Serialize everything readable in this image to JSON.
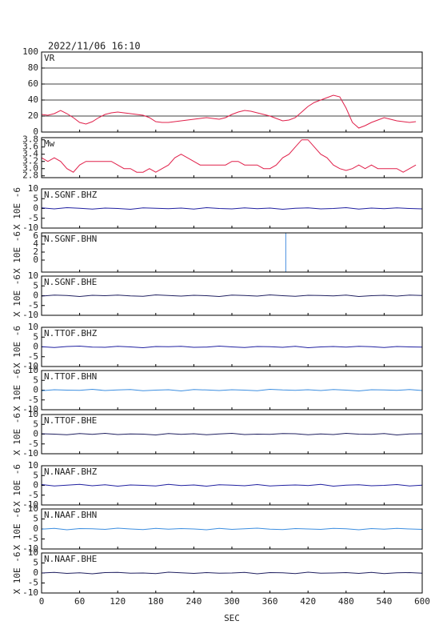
{
  "chart_data": [
    {
      "type": "line",
      "title": "2022/11/06 16:10",
      "label": "VR",
      "grid": true,
      "xlim": [
        0,
        600
      ],
      "xticks": [
        0,
        60,
        120,
        180,
        240,
        300,
        360,
        420,
        480,
        540,
        600
      ],
      "ylim": [
        0,
        100
      ],
      "yticks": [
        0,
        20,
        40,
        60,
        80,
        100
      ],
      "series": [
        {
          "color": "#e0204a",
          "x": [
            0,
            10,
            20,
            30,
            40,
            50,
            60,
            70,
            80,
            90,
            100,
            110,
            120,
            130,
            140,
            150,
            160,
            170,
            180,
            190,
            200,
            210,
            220,
            230,
            240,
            250,
            260,
            270,
            280,
            290,
            300,
            310,
            320,
            330,
            340,
            350,
            360,
            370,
            380,
            390,
            400,
            410,
            420,
            430,
            440,
            450,
            460,
            470,
            480,
            490,
            500,
            510,
            520,
            530,
            540,
            550,
            560,
            570,
            580,
            590
          ],
          "values": [
            22,
            21,
            23,
            27,
            23,
            18,
            12,
            10,
            13,
            18,
            22,
            24,
            25,
            24,
            23,
            22,
            21,
            18,
            13,
            12,
            12,
            13,
            14,
            15,
            16,
            17,
            18,
            17,
            16,
            18,
            22,
            25,
            27,
            26,
            24,
            22,
            20,
            17,
            14,
            15,
            18,
            25,
            32,
            37,
            40,
            43,
            46,
            44,
            30,
            12,
            5,
            8,
            12,
            15,
            18,
            16,
            14,
            13,
            12,
            13
          ]
        }
      ]
    },
    {
      "type": "line",
      "label": "Mw",
      "xlim": [
        0,
        600
      ],
      "xticks": [
        0,
        60,
        120,
        180,
        240,
        300,
        360,
        420,
        480,
        540,
        600
      ],
      "ylim": [
        2.75,
        3.86
      ],
      "yticks": [
        {
          "value": 2.8,
          "label": "2.8"
        },
        {
          "value": 3.0,
          "label": "3.0"
        },
        3.2,
        3.4,
        3.6,
        3.8
      ],
      "series": [
        {
          "color": "#e0204a",
          "x": [
            0,
            10,
            20,
            30,
            40,
            50,
            60,
            70,
            80,
            90,
            100,
            110,
            120,
            130,
            140,
            150,
            160,
            170,
            180,
            190,
            200,
            210,
            220,
            230,
            240,
            250,
            260,
            270,
            280,
            290,
            300,
            310,
            320,
            330,
            340,
            350,
            360,
            370,
            380,
            390,
            400,
            410,
            420,
            430,
            440,
            450,
            460,
            470,
            480,
            490,
            500,
            510,
            520,
            530,
            540,
            550,
            560,
            570,
            580,
            590
          ],
          "values": [
            3.3,
            3.2,
            3.3,
            3.2,
            3.0,
            2.9,
            3.1,
            3.2,
            3.2,
            3.2,
            3.2,
            3.2,
            3.1,
            3.0,
            3.0,
            2.9,
            2.9,
            3.0,
            2.9,
            3.0,
            3.1,
            3.3,
            3.4,
            3.3,
            3.2,
            3.1,
            3.1,
            3.1,
            3.1,
            3.1,
            3.2,
            3.2,
            3.1,
            3.1,
            3.1,
            3.0,
            3.0,
            3.1,
            3.3,
            3.4,
            3.6,
            3.8,
            3.8,
            3.6,
            3.4,
            3.3,
            3.1,
            3.0,
            2.95,
            3.0,
            3.1,
            3.0,
            3.1,
            3.0,
            3.0,
            3.0,
            3.0,
            2.9,
            3.0,
            3.1
          ]
        }
      ]
    },
    {
      "type": "line",
      "label": "N.SGNF.BHZ",
      "ylabel": "X 10E -6",
      "xlim": [
        0,
        600
      ],
      "xticks": [
        0,
        60,
        120,
        180,
        240,
        300,
        360,
        420,
        480,
        540,
        600
      ],
      "ylim": [
        -10,
        10
      ],
      "yticks": [
        -10,
        -5,
        0,
        5,
        10
      ],
      "series": [
        {
          "color": "#2020a0",
          "x": [
            0,
            20,
            40,
            60,
            80,
            100,
            120,
            140,
            160,
            180,
            200,
            220,
            240,
            260,
            280,
            300,
            320,
            340,
            360,
            380,
            400,
            420,
            440,
            460,
            480,
            500,
            520,
            540,
            560,
            580,
            600
          ],
          "values": [
            0.3,
            -0.2,
            0.4,
            0.1,
            -0.3,
            0.2,
            0.0,
            -0.4,
            0.3,
            0.1,
            -0.1,
            0.2,
            -0.3,
            0.4,
            0.0,
            -0.2,
            0.3,
            -0.1,
            0.2,
            -0.4,
            0.1,
            0.3,
            -0.2,
            0.0,
            0.4,
            -0.3,
            0.2,
            -0.1,
            0.3,
            0.0,
            -0.2
          ]
        }
      ]
    },
    {
      "type": "line",
      "label": "N.SGNF.BHN",
      "ylabel": "X 10E -6",
      "xlim": [
        0,
        600
      ],
      "xticks": [
        0,
        60,
        120,
        180,
        240,
        300,
        360,
        420,
        480,
        540,
        600
      ],
      "ylim": [
        -3,
        6.8
      ],
      "yticks": [
        0,
        2,
        4,
        6
      ],
      "series": [
        {
          "color": "#4a90e0",
          "x": [
            385,
            385
          ],
          "values": [
            -3,
            6.8
          ]
        }
      ]
    },
    {
      "type": "line",
      "label": "N.SGNF.BHE",
      "ylabel": "X 10E -6",
      "xlim": [
        0,
        600
      ],
      "xticks": [
        0,
        60,
        120,
        180,
        240,
        300,
        360,
        420,
        480,
        540,
        600
      ],
      "ylim": [
        -10,
        10
      ],
      "yticks": [
        -10,
        -5,
        0,
        5,
        10
      ],
      "series": [
        {
          "color": "#202060",
          "x": [
            0,
            20,
            40,
            60,
            80,
            100,
            120,
            140,
            160,
            180,
            200,
            220,
            240,
            260,
            280,
            300,
            320,
            340,
            360,
            380,
            400,
            420,
            440,
            460,
            480,
            500,
            520,
            540,
            560,
            580,
            600
          ],
          "values": [
            -0.2,
            0.3,
            0.1,
            -0.4,
            0.2,
            0.0,
            0.3,
            -0.1,
            -0.3,
            0.4,
            0.1,
            -0.2,
            0.2,
            0.0,
            -0.4,
            0.3,
            0.1,
            -0.2,
            0.4,
            0.0,
            -0.3,
            0.2,
            0.1,
            -0.1,
            0.3,
            -0.4,
            0.0,
            0.2,
            -0.2,
            0.3,
            0.1
          ]
        }
      ]
    },
    {
      "type": "line",
      "label": "N.TTOF.BHZ",
      "ylabel": "X 10E -6",
      "xlim": [
        0,
        600
      ],
      "xticks": [
        0,
        60,
        120,
        180,
        240,
        300,
        360,
        420,
        480,
        540,
        600
      ],
      "ylim": [
        -10,
        10
      ],
      "yticks": [
        -10,
        -5,
        0,
        5,
        10
      ],
      "series": [
        {
          "color": "#2020a0",
          "x": [
            0,
            20,
            40,
            60,
            80,
            100,
            120,
            140,
            160,
            180,
            200,
            220,
            240,
            260,
            280,
            300,
            320,
            340,
            360,
            380,
            400,
            420,
            440,
            460,
            480,
            500,
            520,
            540,
            560,
            580,
            600
          ],
          "values": [
            0.1,
            -0.3,
            0.2,
            0.4,
            -0.1,
            -0.2,
            0.3,
            0.0,
            -0.4,
            0.2,
            0.1,
            0.3,
            -0.2,
            -0.1,
            0.4,
            0.0,
            -0.3,
            0.2,
            0.1,
            -0.2,
            0.3,
            -0.4,
            0.0,
            0.2,
            -0.1,
            0.3,
            0.1,
            -0.3,
            0.2,
            0.0,
            -0.1
          ]
        }
      ]
    },
    {
      "type": "line",
      "label": "N.TTOF.BHN",
      "ylabel": "X 10E -6",
      "xlim": [
        0,
        600
      ],
      "xticks": [
        0,
        60,
        120,
        180,
        240,
        300,
        360,
        420,
        480,
        540,
        600
      ],
      "ylim": [
        -10,
        10
      ],
      "yticks": [
        -10,
        -5,
        0,
        5,
        10
      ],
      "series": [
        {
          "color": "#3c8ee0",
          "x": [
            0,
            20,
            40,
            60,
            80,
            100,
            120,
            140,
            160,
            180,
            200,
            220,
            240,
            260,
            280,
            300,
            320,
            340,
            360,
            380,
            400,
            420,
            440,
            460,
            480,
            500,
            520,
            540,
            560,
            580,
            600
          ],
          "values": [
            -0.3,
            0.2,
            0.0,
            -0.1,
            0.4,
            -0.2,
            0.1,
            0.3,
            -0.3,
            0.0,
            0.2,
            -0.4,
            0.3,
            0.1,
            -0.2,
            0.2,
            0.0,
            -0.3,
            0.4,
            0.1,
            -0.1,
            0.2,
            -0.2,
            0.3,
            0.0,
            -0.4,
            0.2,
            0.1,
            -0.1,
            0.3,
            -0.2
          ]
        }
      ]
    },
    {
      "type": "line",
      "label": "N.TTOF.BHE",
      "ylabel": "X 10E -6",
      "xlim": [
        0,
        600
      ],
      "xticks": [
        0,
        60,
        120,
        180,
        240,
        300,
        360,
        420,
        480,
        540,
        600
      ],
      "ylim": [
        -10,
        10
      ],
      "yticks": [
        -10,
        -5,
        0,
        5,
        10
      ],
      "series": [
        {
          "color": "#202060",
          "x": [
            0,
            20,
            40,
            60,
            80,
            100,
            120,
            140,
            160,
            180,
            200,
            220,
            240,
            260,
            280,
            300,
            320,
            340,
            360,
            380,
            400,
            420,
            440,
            460,
            480,
            500,
            520,
            540,
            560,
            580,
            600
          ],
          "values": [
            0.2,
            0.0,
            -0.3,
            0.3,
            -0.1,
            0.4,
            -0.2,
            0.1,
            0.0,
            -0.4,
            0.3,
            -0.1,
            0.2,
            -0.3,
            0.1,
            0.4,
            -0.2,
            0.0,
            -0.1,
            0.3,
            0.2,
            -0.3,
            0.1,
            -0.2,
            0.4,
            0.0,
            -0.1,
            0.3,
            -0.4,
            0.1,
            0.2
          ]
        }
      ]
    },
    {
      "type": "line",
      "label": "N.NAAF.BHZ",
      "ylabel": "X 10E -6",
      "xlim": [
        0,
        600
      ],
      "xticks": [
        0,
        60,
        120,
        180,
        240,
        300,
        360,
        420,
        480,
        540,
        600
      ],
      "ylim": [
        -10,
        10
      ],
      "yticks": [
        -10,
        -5,
        0,
        5,
        10
      ],
      "series": [
        {
          "color": "#2020a0",
          "x": [
            0,
            20,
            40,
            60,
            80,
            100,
            120,
            140,
            160,
            180,
            200,
            220,
            240,
            260,
            280,
            300,
            320,
            340,
            360,
            380,
            400,
            420,
            440,
            460,
            480,
            500,
            520,
            540,
            560,
            580,
            600
          ],
          "values": [
            0.4,
            -0.3,
            0.1,
            0.5,
            -0.2,
            0.3,
            -0.4,
            0.2,
            0.0,
            -0.3,
            0.5,
            -0.1,
            0.2,
            -0.4,
            0.3,
            0.1,
            -0.2,
            0.4,
            -0.3,
            0.0,
            0.2,
            -0.1,
            0.5,
            -0.4,
            0.1,
            0.3,
            -0.2,
            0.0,
            0.4,
            -0.3,
            0.1
          ]
        }
      ]
    },
    {
      "type": "line",
      "label": "N.NAAF.BHN",
      "ylabel": "X 10E -6",
      "xlim": [
        0,
        600
      ],
      "xticks": [
        0,
        60,
        120,
        180,
        240,
        300,
        360,
        420,
        480,
        540,
        600
      ],
      "ylim": [
        -10,
        10
      ],
      "yticks": [
        -10,
        -5,
        0,
        5,
        10
      ],
      "series": [
        {
          "color": "#3c8ee0",
          "x": [
            0,
            20,
            40,
            60,
            80,
            100,
            120,
            140,
            160,
            180,
            200,
            220,
            240,
            260,
            280,
            300,
            320,
            340,
            360,
            380,
            400,
            420,
            440,
            460,
            480,
            500,
            520,
            540,
            560,
            580,
            600
          ],
          "values": [
            -0.1,
            0.3,
            -0.4,
            0.2,
            0.1,
            -0.2,
            0.4,
            0.0,
            -0.3,
            0.3,
            -0.1,
            0.2,
            0.0,
            -0.4,
            0.3,
            -0.2,
            0.1,
            0.4,
            -0.1,
            -0.3,
            0.2,
            0.0,
            -0.2,
            0.3,
            0.1,
            -0.4,
            0.2,
            -0.1,
            0.3,
            0.0,
            -0.2
          ]
        }
      ]
    },
    {
      "type": "line",
      "label": "N.NAAF.BHE",
      "ylabel": "X 10E -6",
      "xlabel": "SEC",
      "xlim": [
        0,
        600
      ],
      "xticks": [
        0,
        60,
        120,
        180,
        240,
        300,
        360,
        420,
        480,
        540,
        600
      ],
      "ylim": [
        -10,
        10
      ],
      "yticks": [
        -10,
        -5,
        0,
        5,
        10
      ],
      "series": [
        {
          "color": "#202060",
          "x": [
            0,
            20,
            40,
            60,
            80,
            100,
            120,
            140,
            160,
            180,
            200,
            220,
            240,
            260,
            280,
            300,
            320,
            340,
            360,
            380,
            400,
            420,
            440,
            460,
            480,
            500,
            520,
            540,
            560,
            580,
            600
          ],
          "values": [
            0.0,
            0.3,
            -0.2,
            0.1,
            -0.4,
            0.2,
            0.3,
            -0.1,
            0.0,
            -0.3,
            0.4,
            0.1,
            -0.2,
            0.2,
            -0.1,
            0.0,
            0.3,
            -0.4,
            0.2,
            0.1,
            -0.3,
            0.4,
            -0.1,
            0.0,
            0.2,
            -0.2,
            0.3,
            -0.3,
            0.1,
            0.2,
            -0.1
          ]
        }
      ]
    }
  ]
}
